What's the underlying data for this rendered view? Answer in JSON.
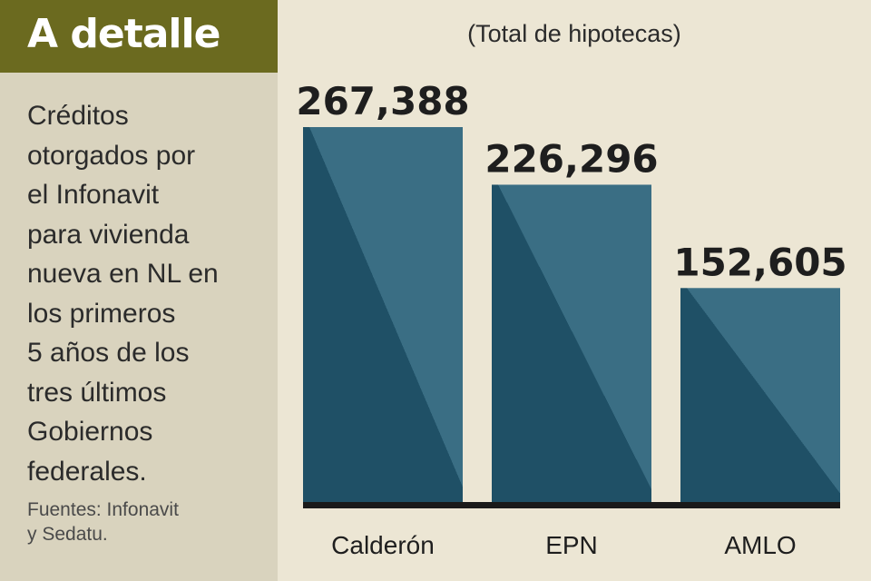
{
  "header": {
    "title": "A detalle"
  },
  "description": {
    "lines": [
      "Créditos",
      "otorgados por",
      "el Infonavit",
      "para vivienda",
      "nueva en NL en",
      "los primeros",
      "5 años de los",
      "tres últimos",
      "Gobiernos",
      "federales."
    ]
  },
  "source": {
    "lines": [
      "Fuentes: Infonavit",
      "y Sedatu."
    ]
  },
  "colors": {
    "bar_dark": "#1f5066",
    "bar_light": "#3a6e84",
    "baseline": "#1a1a1a",
    "header_band": "#6b6a1f",
    "sidebar": "#d9d3be",
    "background": "#ece6d4"
  },
  "chart_data": {
    "type": "bar",
    "subtitle": "(Total de hipotecas)",
    "categories": [
      "Calderón",
      "EPN",
      "AMLO"
    ],
    "values": [
      267388,
      226296,
      152605
    ],
    "value_labels": [
      "267,388",
      "226,296",
      "152,605"
    ],
    "ylim": [
      0,
      267388
    ],
    "grid": false,
    "legend": "none"
  }
}
